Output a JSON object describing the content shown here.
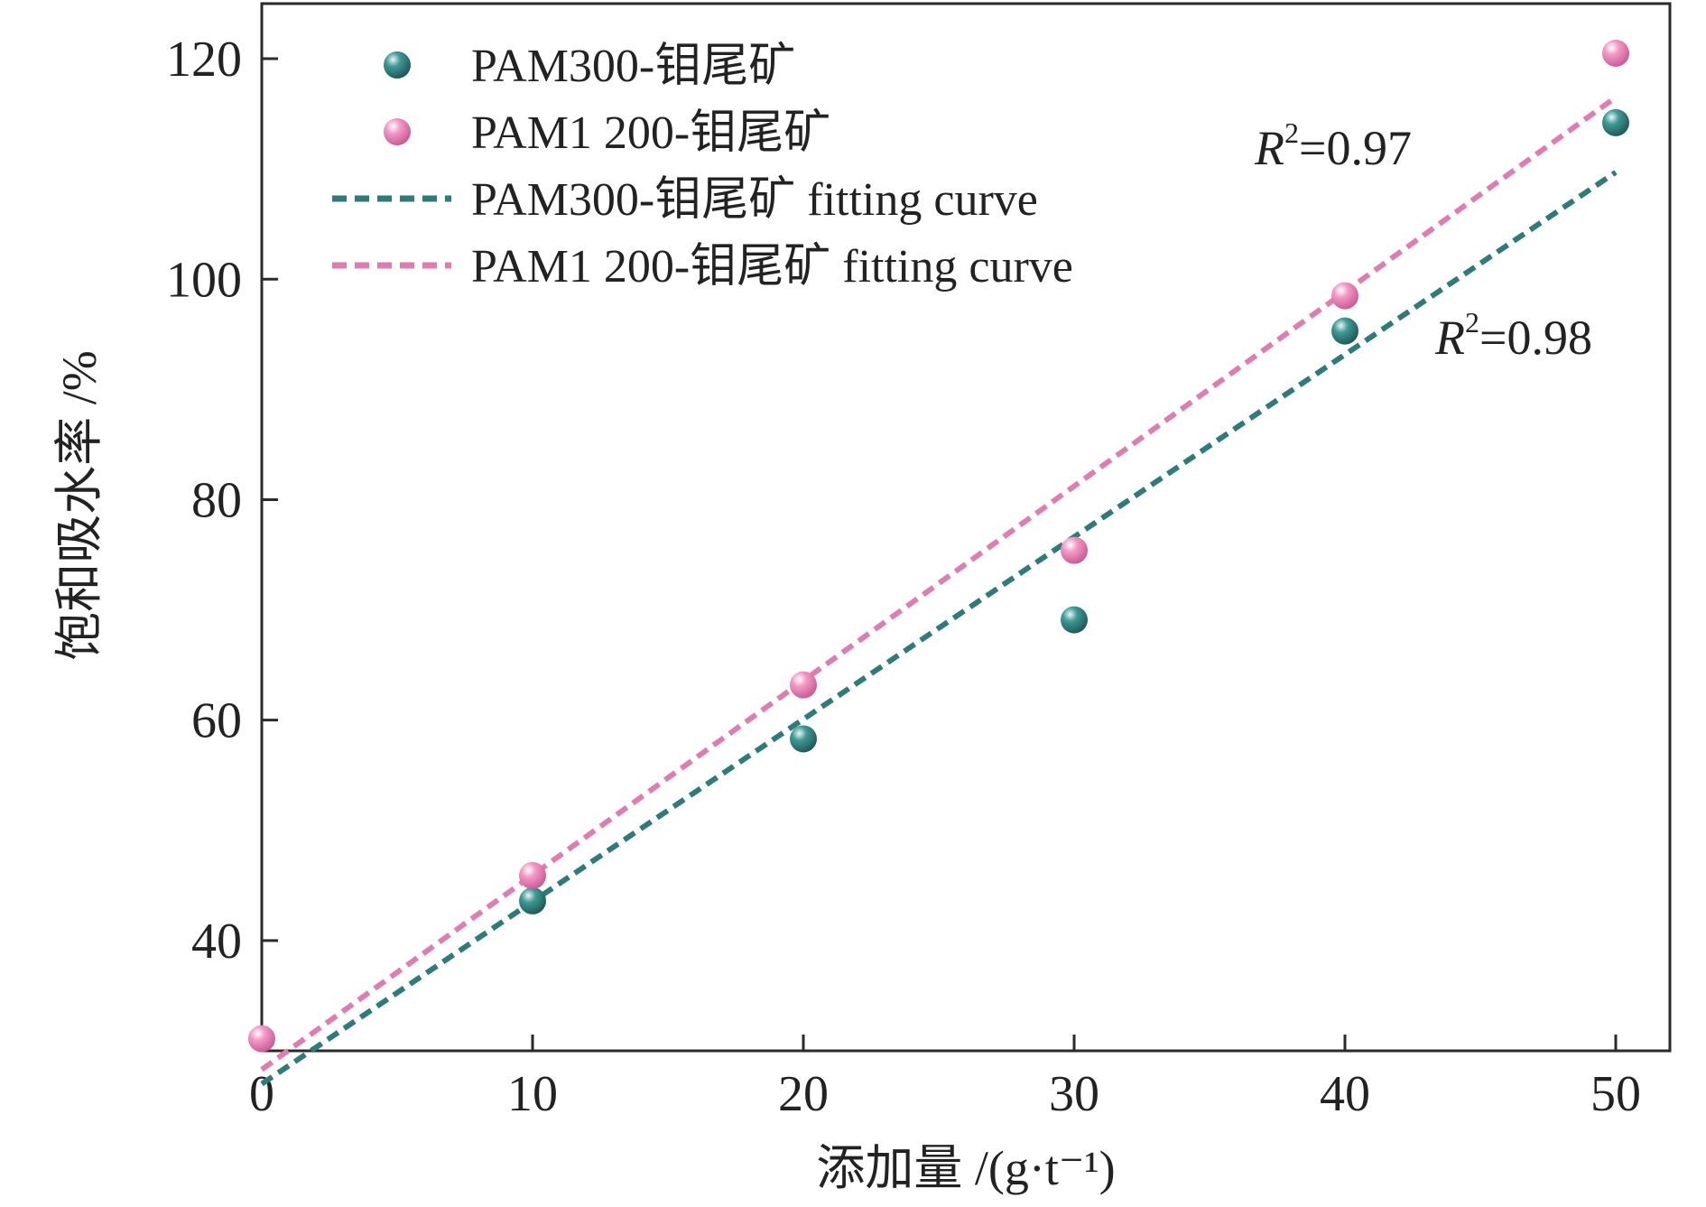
{
  "chart_data": {
    "type": "scatter",
    "xlabel": "添加量 /(g·t⁻¹)",
    "ylabel": "饱和吸水率 /%",
    "xlim": [
      0,
      52
    ],
    "ylim": [
      30,
      125
    ],
    "x_ticks": [
      0,
      10,
      20,
      30,
      40,
      50
    ],
    "y_ticks": [
      40,
      60,
      80,
      100,
      120
    ],
    "grid": false,
    "legend_position": "top-left",
    "series": [
      {
        "name": "PAM300-钼尾矿",
        "kind": "points",
        "color": "#2e7b78",
        "x": [
          10,
          20,
          30,
          40,
          50
        ],
        "y": [
          43.6,
          58.3,
          69.1,
          95.3,
          114.2
        ]
      },
      {
        "name": "PAM1 200-钼尾矿",
        "kind": "points",
        "color": "#e07db0",
        "x": [
          0,
          10,
          20,
          30,
          40,
          50
        ],
        "y": [
          31.1,
          45.9,
          63.2,
          75.4,
          98.5,
          120.5
        ]
      },
      {
        "name": "PAM300-钼尾矿 fitting curve",
        "kind": "fit",
        "color": "#2e7b78",
        "x": [
          0,
          50
        ],
        "y": [
          27.0,
          109.7
        ]
      },
      {
        "name": "PAM1 200-钼尾矿 fitting curve",
        "kind": "fit",
        "color": "#e07db0",
        "x": [
          0,
          50
        ],
        "y": [
          28.3,
          116.5
        ]
      }
    ],
    "annotations": [
      {
        "label": "R",
        "sup": "2",
        "value": "=0.97"
      },
      {
        "label": "R",
        "sup": "2",
        "value": "=0.98"
      }
    ]
  }
}
